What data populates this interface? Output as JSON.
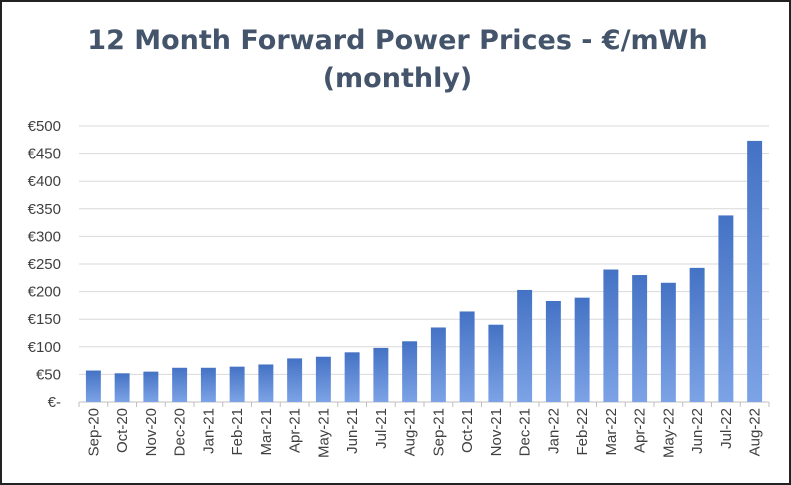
{
  "chart_data": {
    "type": "bar",
    "title": [
      "12 Month Forward Power Prices - €/mWh",
      "(monthly)"
    ],
    "categories": [
      "Sep-20",
      "Oct-20",
      "Nov-20",
      "Dec-20",
      "Jan-21",
      "Feb-21",
      "Mar-21",
      "Apr-21",
      "May-21",
      "Jun-21",
      "Jul-21",
      "Aug-21",
      "Sep-21",
      "Oct-21",
      "Nov-21",
      "Dec-21",
      "Jan-22",
      "Feb-22",
      "Mar-22",
      "Apr-22",
      "May-22",
      "Jun-22",
      "Jul-22",
      "Aug-22"
    ],
    "values": [
      57,
      52,
      55,
      62,
      62,
      64,
      68,
      79,
      82,
      90,
      98,
      110,
      135,
      164,
      140,
      203,
      183,
      189,
      240,
      230,
      216,
      243,
      338,
      473
    ],
    "ylim": [
      0,
      500
    ],
    "yticks": [
      0,
      50,
      100,
      150,
      200,
      250,
      300,
      350,
      400,
      450,
      500
    ],
    "ytick_labels": [
      "€-",
      "€50",
      "€100",
      "€150",
      "€200",
      "€250",
      "€300",
      "€350",
      "€400",
      "€450",
      "€500"
    ],
    "grid": true,
    "bar_color": "#4472C4",
    "bar_color_light": "#7DA3E6"
  }
}
